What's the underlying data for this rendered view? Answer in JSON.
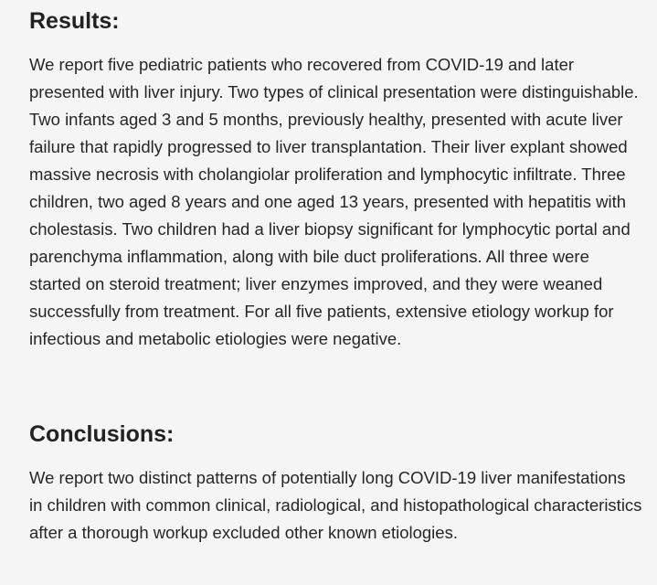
{
  "results": {
    "heading": "Results:",
    "body": "We report five pediatric patients who recovered from COVID-19 and later presented with liver injury. Two types of clinical presentation were distinguishable. Two infants aged 3 and 5 months, previously healthy, presented with acute liver failure that rapidly progressed to liver transplantation. Their liver explant showed massive necrosis with cholangiolar proliferation and lymphocytic infiltrate. Three children, two aged 8 years and one aged 13 years, presented with hepatitis with cholestasis. Two children had a liver biopsy significant for lymphocytic portal and parenchyma inflammation, along with bile duct proliferations. All three were started on steroid treatment; liver enzymes improved, and they were weaned successfully from treatment. For all five patients, extensive etiology workup for infectious and metabolic etiologies were negative."
  },
  "conclusions": {
    "heading": "Conclusions:",
    "body": "We report two distinct patterns of potentially long COVID-19 liver manifestations in children with common clinical, radiological, and histopathological characteristics after a thorough workup excluded other known etiologies."
  }
}
